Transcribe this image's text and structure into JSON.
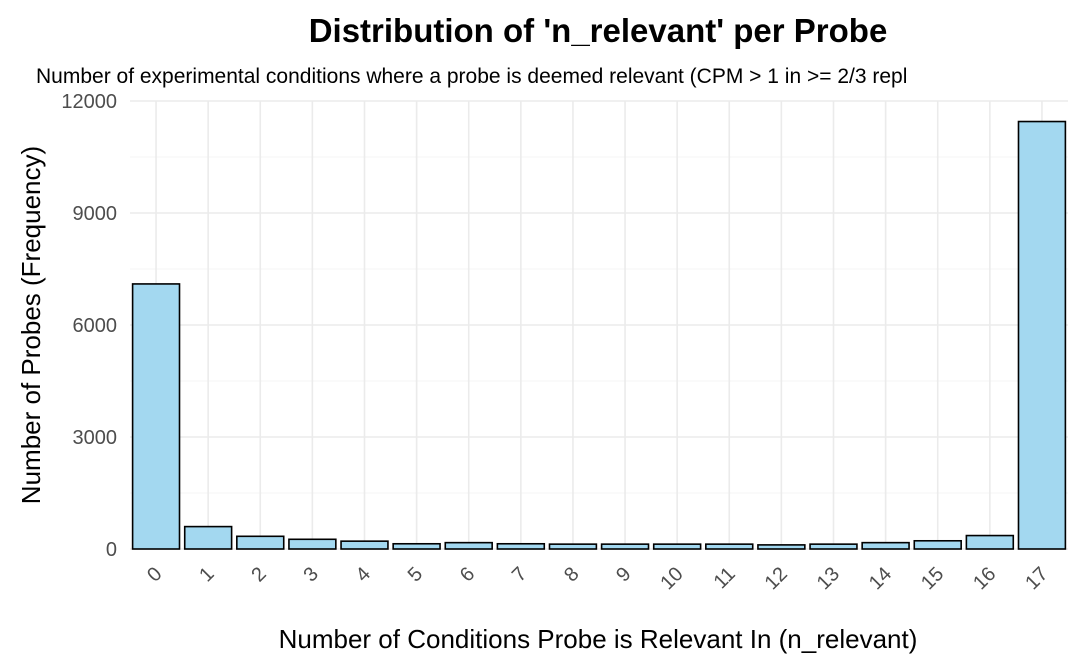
{
  "chart_data": {
    "type": "bar",
    "title": "Distribution of 'n_relevant' per Probe",
    "subtitle": "Number of experimental conditions where a probe is deemed relevant (CPM > 1 in >= 2/3 repl",
    "xlabel": "Number of Conditions Probe is Relevant In (n_relevant)",
    "ylabel": "Number of Probes (Frequency)",
    "categories": [
      "0",
      "1",
      "2",
      "3",
      "4",
      "5",
      "6",
      "7",
      "8",
      "9",
      "10",
      "11",
      "12",
      "13",
      "14",
      "15",
      "16",
      "17"
    ],
    "values": [
      7100,
      600,
      340,
      260,
      210,
      140,
      170,
      140,
      130,
      130,
      130,
      130,
      110,
      130,
      170,
      220,
      360,
      11450
    ],
    "yticks": [
      0,
      3000,
      6000,
      9000,
      12000
    ],
    "ytick_labels": [
      "0",
      "3000",
      "6000",
      "9000",
      "12000"
    ],
    "ylim": [
      0,
      12000
    ],
    "bar_color": "#a3d8f0",
    "grid": true,
    "legend": "none"
  }
}
